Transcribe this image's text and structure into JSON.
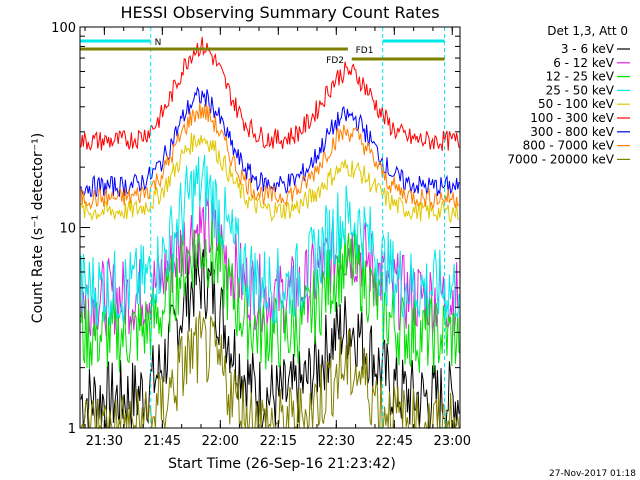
{
  "chart_data": {
    "type": "line",
    "title": "HESSI Observing Summary Count Rates",
    "xlabel": "Start Time (26-Sep-16 21:23:42)",
    "ylabel": "Count Rate (s⁻¹ detector⁻¹)",
    "y_scale": "log",
    "ylim": [
      1,
      100
    ],
    "xlim": [
      "21:23:42",
      "23:02:00"
    ],
    "x_ticks": [
      "21:30",
      "21:45",
      "22:00",
      "22:15",
      "22:30",
      "22:45",
      "23:00"
    ],
    "y_ticks": [
      "1",
      "10",
      "100"
    ],
    "legend_header": "Det 1,3, Att 0",
    "legend_position": "right",
    "series": [
      {
        "name": "3 - 6 keV",
        "color": "#000000",
        "peak1": 5.5,
        "base": 1.4,
        "peak2": 3.2
      },
      {
        "name": "6 - 12 keV",
        "color": "#e020e0",
        "peak1": 10,
        "base": 4.5,
        "peak2": 8
      },
      {
        "name": "12 - 25 keV",
        "color": "#00e000",
        "peak1": 8,
        "base": 2.9,
        "peak2": 6.5
      },
      {
        "name": "25 - 50 keV",
        "color": "#00e8e8",
        "peak1": 16,
        "base": 5,
        "peak2": 11
      },
      {
        "name": "50 - 100 keV",
        "color": "#e0c800",
        "peak1": 28,
        "base": 12,
        "peak2": 20
      },
      {
        "name": "100 - 300 keV",
        "color": "#ff0000",
        "peak1": 80,
        "base": 27,
        "peak2": 60
      },
      {
        "name": "300 - 800 keV",
        "color": "#0000ff",
        "peak1": 45,
        "base": 16,
        "peak2": 36
      },
      {
        "name": "800 - 7000 keV",
        "color": "#ff8000",
        "peak1": 38,
        "base": 14,
        "peak2": 30
      },
      {
        "name": "7000 - 20000 keV",
        "color": "#808000",
        "peak1": 2.5,
        "base": 1.0,
        "peak2": 2.0
      }
    ],
    "flags": [
      {
        "label": "N",
        "color": "#00e8e8"
      },
      {
        "label": "FD1",
        "color": "#808000"
      },
      {
        "label": "FD2",
        "color": "#808000"
      }
    ],
    "timestamp": "27-Nov-2017 01:18"
  }
}
